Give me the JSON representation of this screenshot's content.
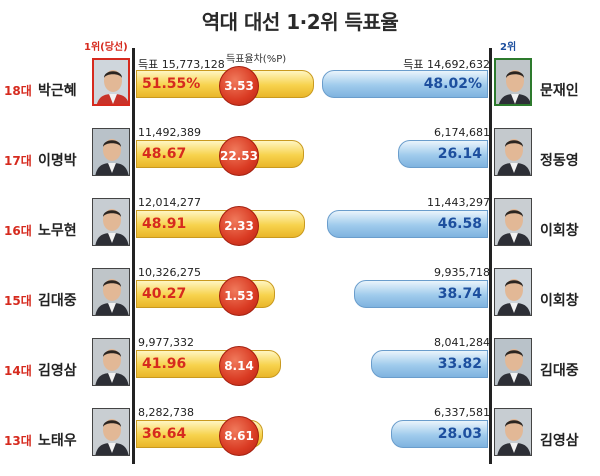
{
  "title": "역대 대선 1·2위 득표율",
  "header": {
    "winner_label": "1위(당선)",
    "runner_label": "2위",
    "diff_label": "득표율차(%P)"
  },
  "colors": {
    "winner_bar": "#f7d24c",
    "runner_bar": "#9fcbec",
    "winner_text": "#d62a1e",
    "runner_text": "#1d4f9e",
    "diff_circle": "#d93a22"
  },
  "chart_data": {
    "type": "bar",
    "title": "역대 대선 1·2위 득표율",
    "categories": [
      "18대",
      "17대",
      "16대",
      "15대",
      "14대",
      "13대"
    ],
    "series": [
      {
        "name": "1위(당선)",
        "candidates": [
          "박근혜",
          "이명박",
          "노무현",
          "김대중",
          "김영삼",
          "노태우"
        ],
        "votes": [
          "득표 15,773,128",
          "11,492,389",
          "12,014,277",
          "10,326,275",
          "9,977,332",
          "8,282,738"
        ],
        "values": [
          51.55,
          48.67,
          48.91,
          40.27,
          41.96,
          36.64
        ],
        "labels": [
          "51.55%",
          "48.67",
          "48.91",
          "40.27",
          "41.96",
          "36.64"
        ]
      },
      {
        "name": "2위",
        "candidates": [
          "문재인",
          "정동영",
          "이회창",
          "이회창",
          "김대중",
          "김영삼"
        ],
        "votes": [
          "득표 14,692,632",
          "6,174,681",
          "11,443,297",
          "9,935,718",
          "8,041,284",
          "6,337,581"
        ],
        "values": [
          48.02,
          26.14,
          46.58,
          38.74,
          33.82,
          28.03
        ],
        "labels": [
          "48.02%",
          "26.14",
          "46.58",
          "38.74",
          "33.82",
          "28.03"
        ]
      }
    ],
    "differences": [
      "3.53",
      "22.53",
      "2.33",
      "1.53",
      "8.14",
      "8.61"
    ],
    "xlim": [
      0,
      55
    ]
  }
}
